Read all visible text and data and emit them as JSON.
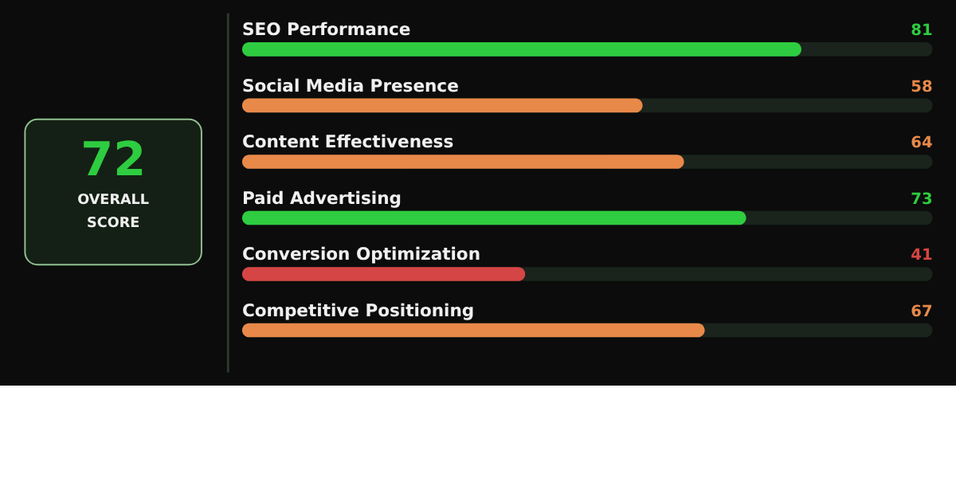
{
  "chart_data": [
    {
      "type": "other",
      "annotations": [
        "72",
        "OVERALL",
        "SCORE"
      ]
    },
    {
      "type": "bar",
      "orientation": "horizontal",
      "data_labels": true,
      "xlim": [
        0,
        100
      ],
      "categories": [
        "SEO Performance",
        "Social Media Presence",
        "Content Effectiveness",
        "Paid Advertising",
        "Conversion Optimization",
        "Competitive Positioning"
      ],
      "values": [
        81,
        58,
        64,
        73,
        41,
        67
      ],
      "colors": [
        "#2ecc40",
        "#e8894a",
        "#e8894a",
        "#2ecc40",
        "#d64545",
        "#e8894a"
      ]
    }
  ]
}
